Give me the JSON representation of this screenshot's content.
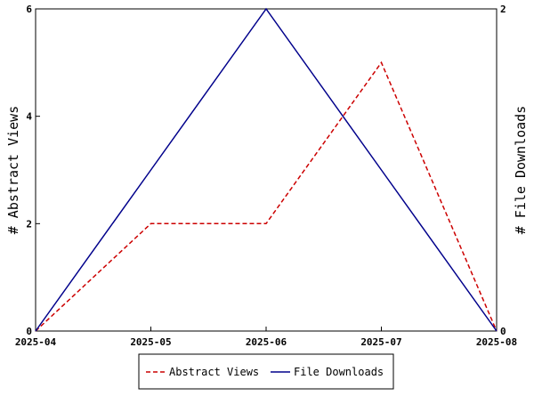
{
  "chart_data": {
    "type": "line",
    "title": "",
    "x": [
      "2025-04",
      "2025-05",
      "2025-06",
      "2025-07",
      "2025-08"
    ],
    "ylabel_left": "# Abstract Views",
    "ylabel_right": "# File Downloads",
    "ylim_left": [
      0,
      6
    ],
    "ylim_right": [
      0,
      2
    ],
    "yticks_left": [
      0,
      2,
      4,
      6
    ],
    "yticks_right": [
      0,
      2
    ],
    "grid": false,
    "legend_position": "bottom",
    "series": [
      {
        "name": "Abstract Views",
        "axis": "left",
        "color": "#cc0000",
        "style": "dashed",
        "values": [
          0,
          2,
          2,
          5,
          0
        ]
      },
      {
        "name": "File Downloads",
        "axis": "right",
        "color": "#00008b",
        "style": "solid",
        "values": [
          0,
          1,
          2,
          1,
          0
        ]
      }
    ]
  }
}
